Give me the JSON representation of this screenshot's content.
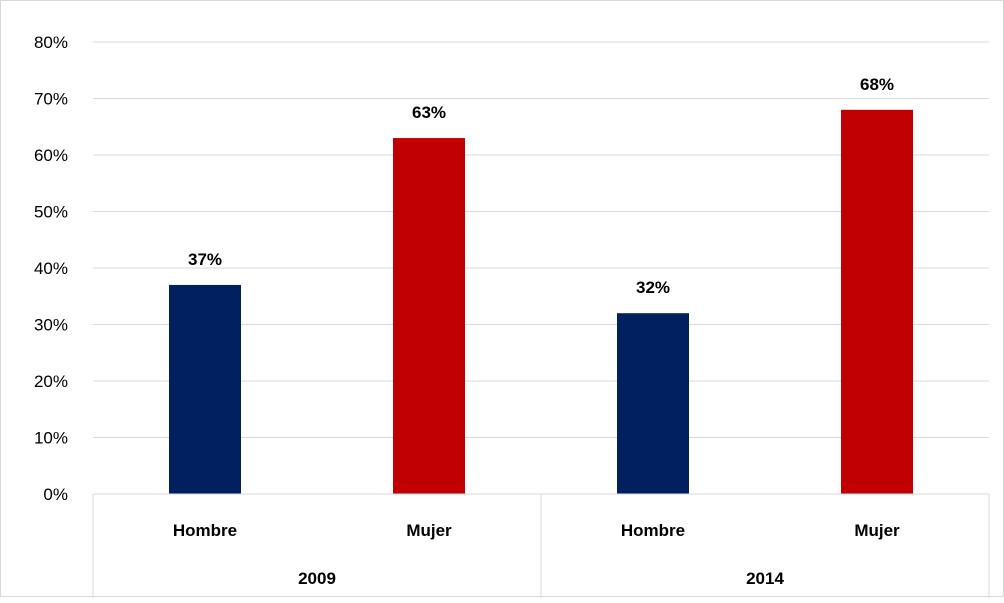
{
  "chart_data": {
    "type": "bar",
    "title": "",
    "xlabel": "",
    "ylabel": "",
    "ylim": [
      0,
      80
    ],
    "y_ticks": [
      "0%",
      "10%",
      "20%",
      "30%",
      "40%",
      "50%",
      "60%",
      "70%",
      "80%"
    ],
    "grid": true,
    "legend": "none",
    "groups": [
      {
        "label": "2009",
        "bars": [
          {
            "category": "Hombre",
            "value": 37,
            "label": "37%",
            "color": "#002060"
          },
          {
            "category": "Mujer",
            "value": 63,
            "label": "63%",
            "color": "#C00000"
          }
        ]
      },
      {
        "label": "2014",
        "bars": [
          {
            "category": "Hombre",
            "value": 32,
            "label": "32%",
            "color": "#002060"
          },
          {
            "category": "Mujer",
            "value": 68,
            "label": "68%",
            "color": "#C00000"
          }
        ]
      }
    ],
    "colors": {
      "hombre": "#002060",
      "mujer": "#C00000",
      "grid": "#d9d9d9"
    }
  }
}
